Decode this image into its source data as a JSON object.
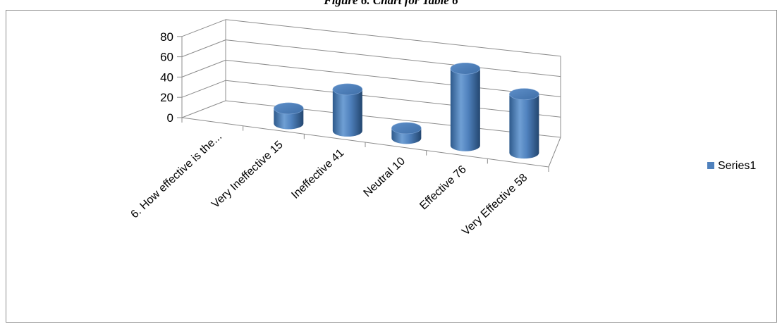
{
  "figure": {
    "caption": "Figure 6. Chart for Table 6"
  },
  "chart_data": {
    "type": "bar",
    "style": "3d-cylinder",
    "title": "",
    "categories": [
      "6. How effective is the...",
      "Very Ineffective 15",
      "Ineffective 41",
      "Neutral 10",
      "Effective 76",
      "Very Effective 58"
    ],
    "series": [
      {
        "name": "Series1",
        "values": [
          null,
          15,
          41,
          10,
          76,
          58
        ],
        "color": "#4f81bd"
      }
    ],
    "xlabel": "",
    "ylabel": "",
    "ylim": [
      0,
      80
    ],
    "yticks": [
      "0",
      "20",
      "40",
      "60",
      "80"
    ],
    "grid": true,
    "legend": {
      "position": "right",
      "label": "Series1"
    }
  }
}
